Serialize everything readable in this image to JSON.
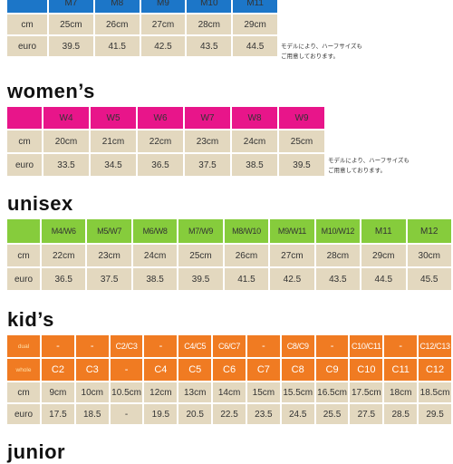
{
  "men": {
    "head": [
      "M7",
      "M8",
      "M9",
      "M10",
      "M11"
    ],
    "rows": [
      {
        "label": "cm",
        "cells": [
          "25cm",
          "26cm",
          "27cm",
          "28cm",
          "29cm"
        ]
      },
      {
        "label": "euro",
        "cells": [
          "39.5",
          "41.5",
          "42.5",
          "43.5",
          "44.5"
        ]
      }
    ],
    "note": [
      "モデルにより、ハーフサイズも",
      "ご用意しております。"
    ]
  },
  "women": {
    "title": "women’s",
    "head": [
      "W4",
      "W5",
      "W6",
      "W7",
      "W8",
      "W9"
    ],
    "rows": [
      {
        "label": "cm",
        "cells": [
          "20cm",
          "21cm",
          "22cm",
          "23cm",
          "24cm",
          "25cm"
        ]
      },
      {
        "label": "euro",
        "cells": [
          "33.5",
          "34.5",
          "36.5",
          "37.5",
          "38.5",
          "39.5"
        ]
      }
    ],
    "note": [
      "モデルにより、ハーフサイズも",
      "ご用意しております。"
    ]
  },
  "unisex": {
    "title": "unisex",
    "head": [
      {
        "top": "M4",
        "bottom": "W6"
      },
      {
        "top": "M5",
        "bottom": "W7"
      },
      {
        "top": "M6",
        "bottom": "W8"
      },
      {
        "top": "M7",
        "bottom": "W9"
      },
      {
        "top": "M8",
        "bottom": "W10"
      },
      {
        "top": "M9",
        "bottom": "W11"
      },
      {
        "top": "M10",
        "bottom": "W12"
      },
      {
        "top": "M11",
        "bottom": ""
      },
      {
        "top": "M12",
        "bottom": ""
      }
    ],
    "rows": [
      {
        "label": "cm",
        "cells": [
          "22cm",
          "23cm",
          "24cm",
          "25cm",
          "26cm",
          "27cm",
          "28cm",
          "29cm",
          "30cm"
        ]
      },
      {
        "label": "euro",
        "cells": [
          "36.5",
          "37.5",
          "38.5",
          "39.5",
          "41.5",
          "42.5",
          "43.5",
          "44.5",
          "45.5"
        ]
      }
    ]
  },
  "kids": {
    "title": "kid’s",
    "dual_label": "dual",
    "whole_label": "whole",
    "dual": [
      "-",
      "-",
      {
        "top": "C2",
        "bottom": "C3"
      },
      "-",
      {
        "top": "C4",
        "bottom": "C5"
      },
      {
        "top": "C6",
        "bottom": "C7"
      },
      "-",
      {
        "top": "C8",
        "bottom": "C9"
      },
      "-",
      {
        "top": "C10",
        "bottom": "C11"
      },
      "-",
      {
        "top": "C12",
        "bottom": "C13"
      }
    ],
    "whole": [
      "C2",
      "C3",
      "-",
      "C4",
      "C5",
      "C6",
      "C7",
      "C8",
      "C9",
      "C10",
      "C11",
      "C12"
    ],
    "rows": [
      {
        "label": "cm",
        "cells": [
          "9cm",
          "10cm",
          "10.5cm",
          "12cm",
          "13cm",
          "14cm",
          "15cm",
          "15.5cm",
          "16.5cm",
          "17.5cm",
          "18cm",
          "18.5cm"
        ]
      },
      {
        "label": "euro",
        "cells": [
          "17.5",
          "18.5",
          "-",
          "19.5",
          "20.5",
          "22.5",
          "23.5",
          "24.5",
          "25.5",
          "27.5",
          "28.5",
          "29.5"
        ]
      }
    ]
  },
  "junior": {
    "title": "junior"
  },
  "colors": {
    "men": "#1c76c8",
    "women": "#e8158a",
    "unisex": "#86cc3c",
    "kids": "#f07b22",
    "cell": "#e3d8bf"
  }
}
